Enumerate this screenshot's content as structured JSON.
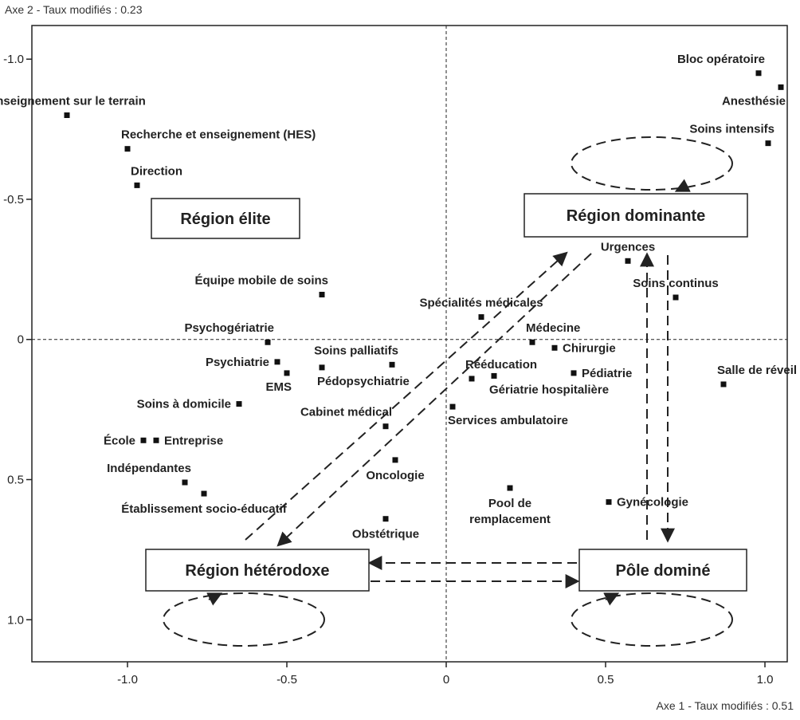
{
  "chart_data": {
    "type": "scatter",
    "xlabel": "Axe 1 - Taux modifiés : 0.51",
    "ylabel": "Axe 2 - Taux modifiés : 0.23",
    "xlim": [
      -1.3,
      1.07
    ],
    "ylim": [
      -1.12,
      1.15
    ],
    "y_inverted": true,
    "grid": false,
    "xticks": [
      -1.0,
      -0.5,
      0,
      0.5,
      1.0
    ],
    "xtick_labels": [
      "-1.0",
      "-0.5",
      "0",
      "0.5",
      "1.0"
    ],
    "yticks": [
      -1.0,
      -0.5,
      0,
      0.5,
      1.0
    ],
    "ytick_labels": [
      "-1.0",
      "-0.5",
      "0",
      "0.5",
      "1.0"
    ],
    "points": [
      {
        "label": "Bloc opératoire",
        "x": 0.98,
        "y": -0.95,
        "label_pos": "above-left"
      },
      {
        "label": "Anesthésie",
        "x": 1.05,
        "y": -0.9,
        "label_pos": "below-left"
      },
      {
        "label": "Soins intensifs",
        "x": 1.01,
        "y": -0.7,
        "label_pos": "above-left"
      },
      {
        "label": "Enseignement sur le terrain",
        "x": -1.19,
        "y": -0.8,
        "label_pos": "above"
      },
      {
        "label": "Recherche et enseignement (HES)",
        "x": -1.0,
        "y": -0.68,
        "label_pos": "above-right"
      },
      {
        "label": "Direction",
        "x": -0.97,
        "y": -0.55,
        "label_pos": "above-right"
      },
      {
        "label": "Urgences",
        "x": 0.57,
        "y": -0.28,
        "label_pos": "above"
      },
      {
        "label": "Équipe mobile de soins",
        "x": -0.39,
        "y": -0.16,
        "label_pos": "above-left"
      },
      {
        "label": "Soins continus",
        "x": 0.72,
        "y": -0.15,
        "label_pos": "above"
      },
      {
        "label": "Spécialités médicales",
        "x": 0.11,
        "y": -0.08,
        "label_pos": "above"
      },
      {
        "label": "Psychogériatrie",
        "x": -0.56,
        "y": 0.01,
        "label_pos": "above-left"
      },
      {
        "label": "Médecine",
        "x": 0.27,
        "y": 0.01,
        "label_pos": "above-right"
      },
      {
        "label": "Chirurgie",
        "x": 0.34,
        "y": 0.03,
        "label_pos": "right"
      },
      {
        "label": "Psychiatrie",
        "x": -0.53,
        "y": 0.08,
        "label_pos": "left"
      },
      {
        "label": "Soins palliatifs",
        "x": -0.17,
        "y": 0.09,
        "label_pos": "above-left"
      },
      {
        "label": "EMS",
        "x": -0.5,
        "y": 0.12,
        "label_pos": "below-left"
      },
      {
        "label": "Pédopsychiatrie",
        "x": -0.39,
        "y": 0.1,
        "label_pos": "below-right"
      },
      {
        "label": "Rééducation",
        "x": 0.08,
        "y": 0.14,
        "label_pos": "above-right"
      },
      {
        "label": "Gériatrie hospitalière",
        "x": 0.15,
        "y": 0.13,
        "label_pos": "below-right"
      },
      {
        "label": "Pédiatrie",
        "x": 0.4,
        "y": 0.12,
        "label_pos": "right"
      },
      {
        "label": "Salle de réveil",
        "x": 0.87,
        "y": 0.16,
        "label_pos": "above-right"
      },
      {
        "label": "Soins à domicile",
        "x": -0.65,
        "y": 0.23,
        "label_pos": "left"
      },
      {
        "label": "Services ambulatoire",
        "x": 0.02,
        "y": 0.24,
        "label_pos": "below-right"
      },
      {
        "label": "Cabinet médical",
        "x": -0.19,
        "y": 0.31,
        "label_pos": "above-left"
      },
      {
        "label": "École",
        "x": -0.95,
        "y": 0.36,
        "label_pos": "left"
      },
      {
        "label": "Entreprise",
        "x": -0.91,
        "y": 0.36,
        "label_pos": "right"
      },
      {
        "label": "Oncologie",
        "x": -0.16,
        "y": 0.43,
        "label_pos": "below"
      },
      {
        "label": "Indépendantes",
        "x": -0.82,
        "y": 0.51,
        "label_pos": "above-left"
      },
      {
        "label": "Établissement socio-éducatif",
        "x": -0.76,
        "y": 0.55,
        "label_pos": "below"
      },
      {
        "label": "Pool de\nremplacement",
        "x": 0.2,
        "y": 0.53,
        "label_pos": "below"
      },
      {
        "label": "Gynécologie",
        "x": 0.51,
        "y": 0.58,
        "label_pos": "right"
      },
      {
        "label": "Obstétrique",
        "x": -0.19,
        "y": 0.64,
        "label_pos": "below"
      }
    ],
    "regions": [
      {
        "label": "Région élite"
      },
      {
        "label": "Région dominante"
      },
      {
        "label": "Région hétérodoxe"
      },
      {
        "label": "Pôle dominé"
      }
    ]
  }
}
